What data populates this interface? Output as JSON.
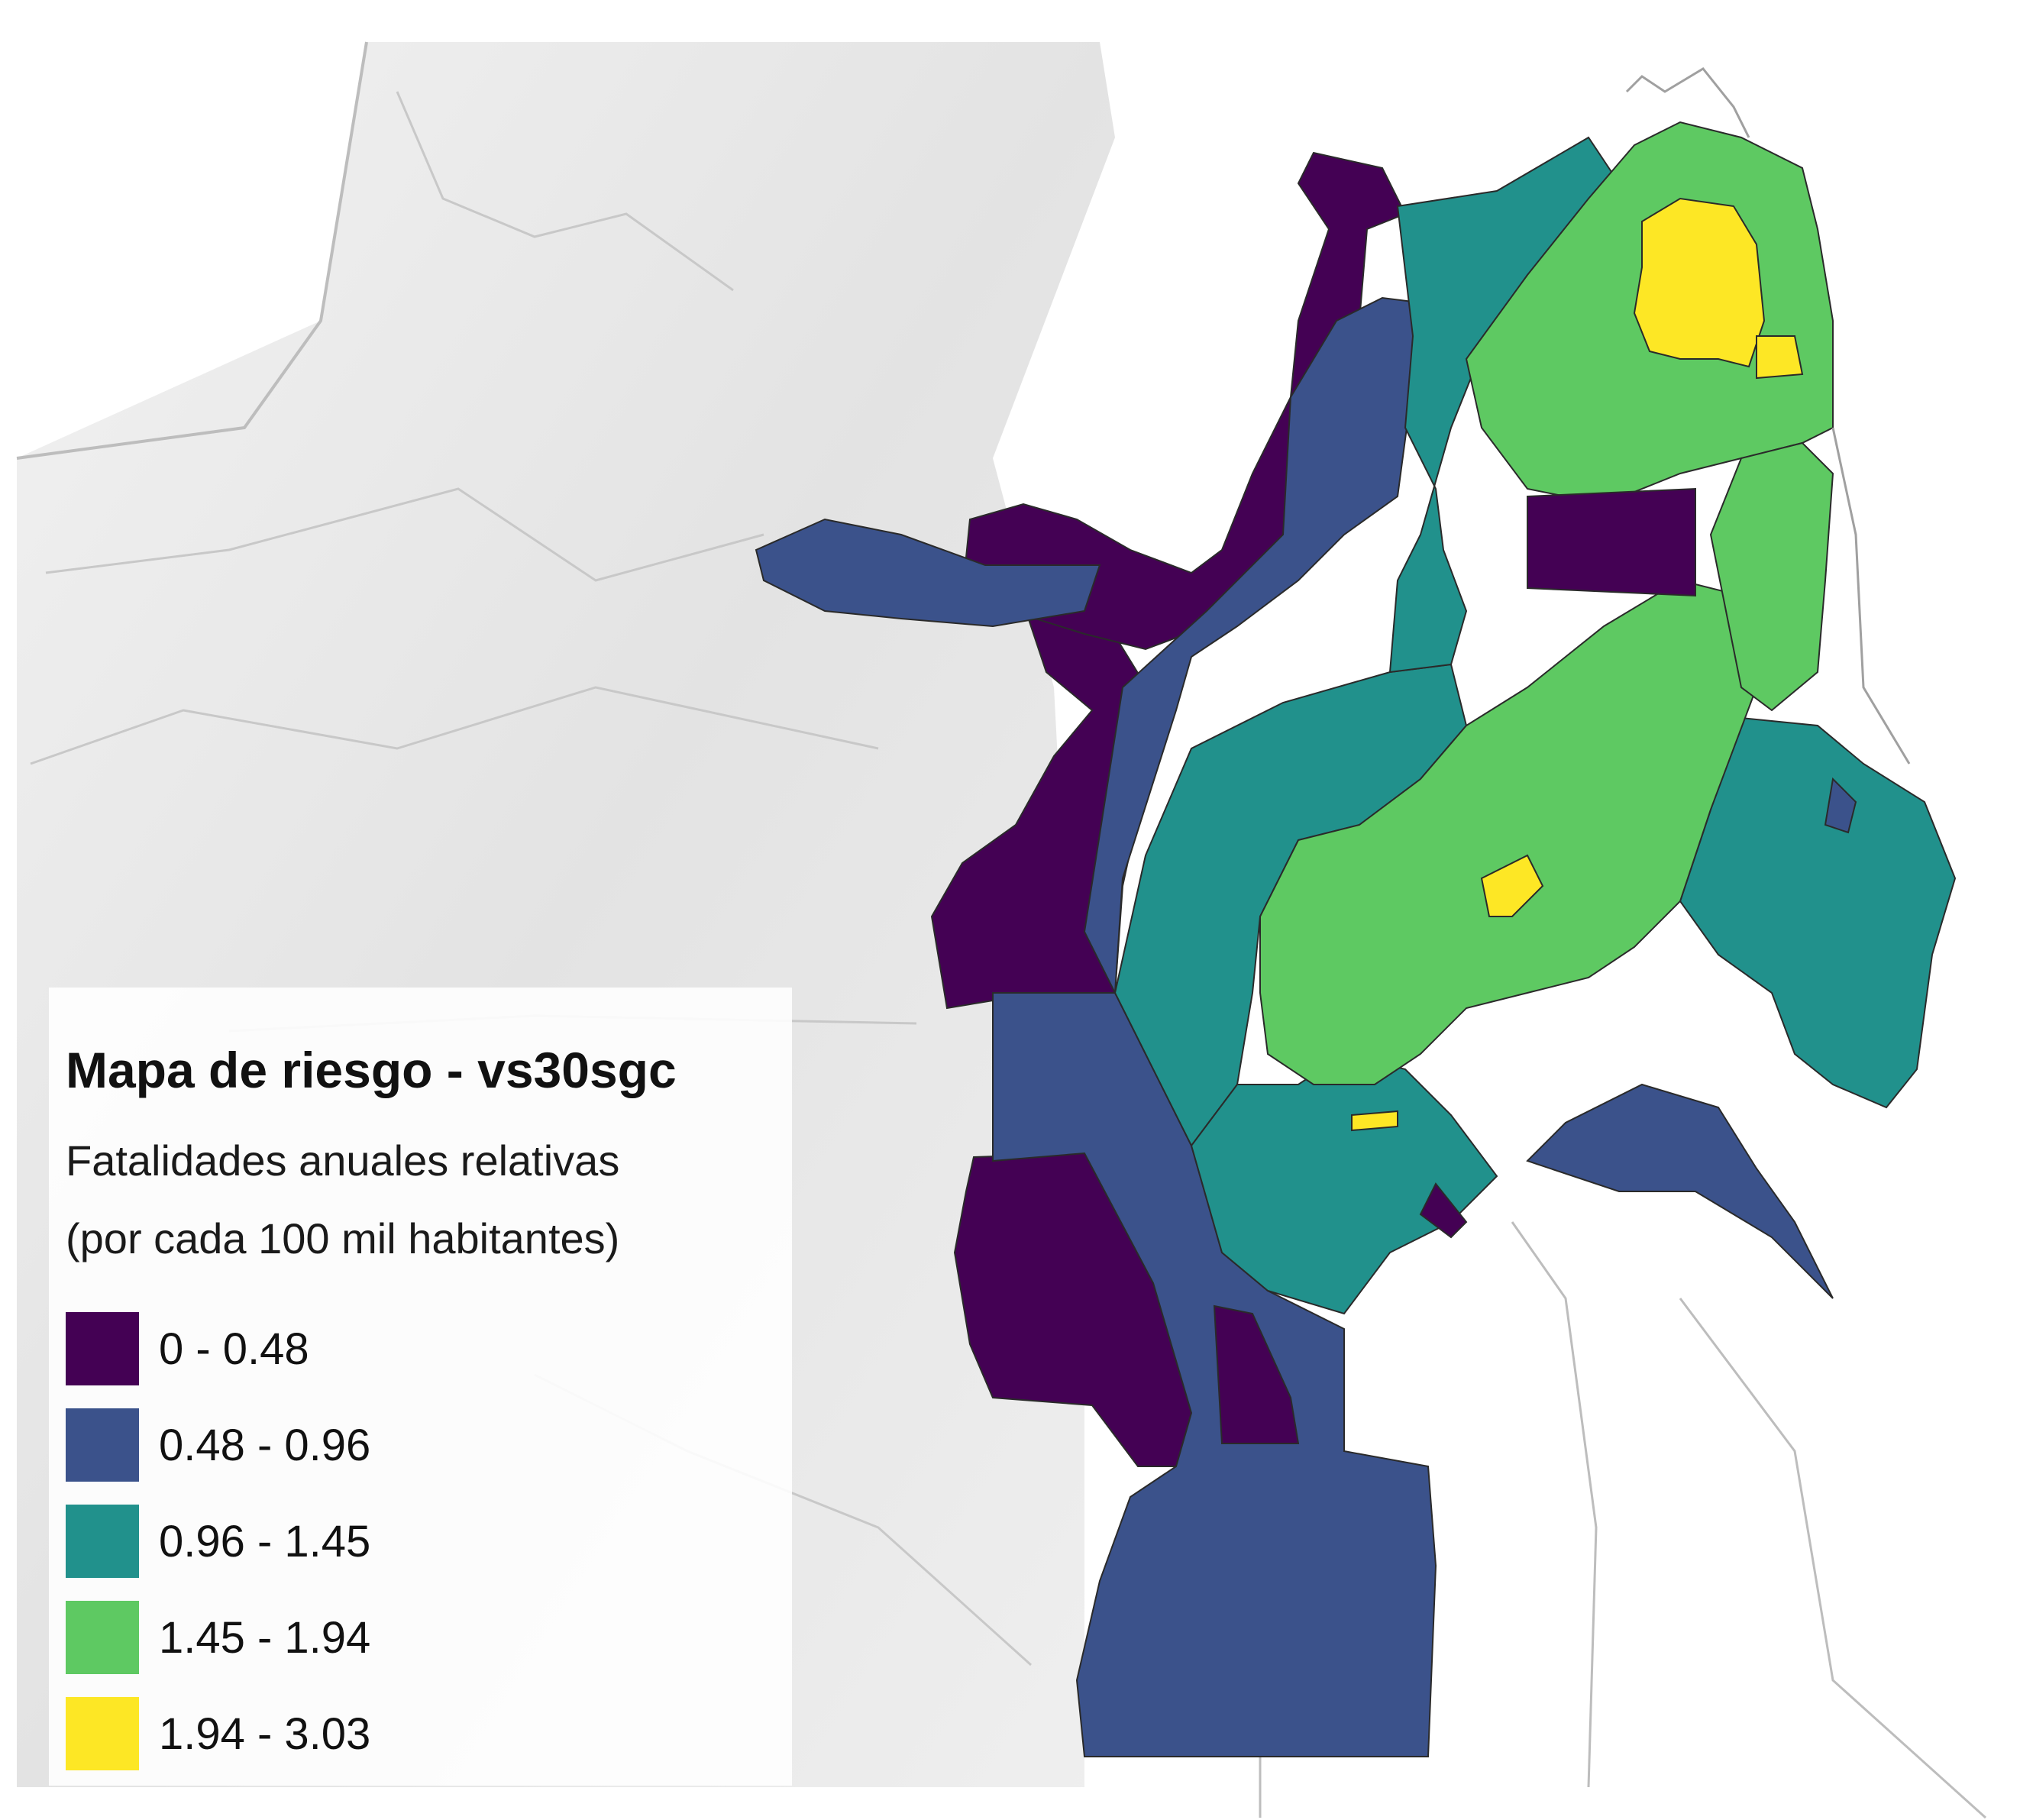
{
  "map": {
    "basemap": "grey hillshade terrain with administrative boundary lines",
    "classes": [
      {
        "range": "0 - 0.48",
        "color": "#440154"
      },
      {
        "range": "0.48 - 0.96",
        "color": "#3b528b"
      },
      {
        "range": "0.96 - 1.45",
        "color": "#21918c"
      },
      {
        "range": "1.45 - 1.94",
        "color": "#5ec962"
      },
      {
        "range": "1.94 - 3.03",
        "color": "#fde725"
      }
    ]
  },
  "legend": {
    "title": "Mapa de riesgo - vs30sgc",
    "subtitle_line1": "Fatalidades anuales relativas",
    "subtitle_line2": "(por cada 100 mil habitantes)",
    "items": [
      {
        "label": "0 - 0.48",
        "color": "#440154"
      },
      {
        "label": "0.48 - 0.96",
        "color": "#3b528b"
      },
      {
        "label": "0.96 - 1.45",
        "color": "#21918c"
      },
      {
        "label": "1.45 - 1.94",
        "color": "#5ec962"
      },
      {
        "label": "1.94 - 3.03",
        "color": "#fde725"
      }
    ]
  }
}
